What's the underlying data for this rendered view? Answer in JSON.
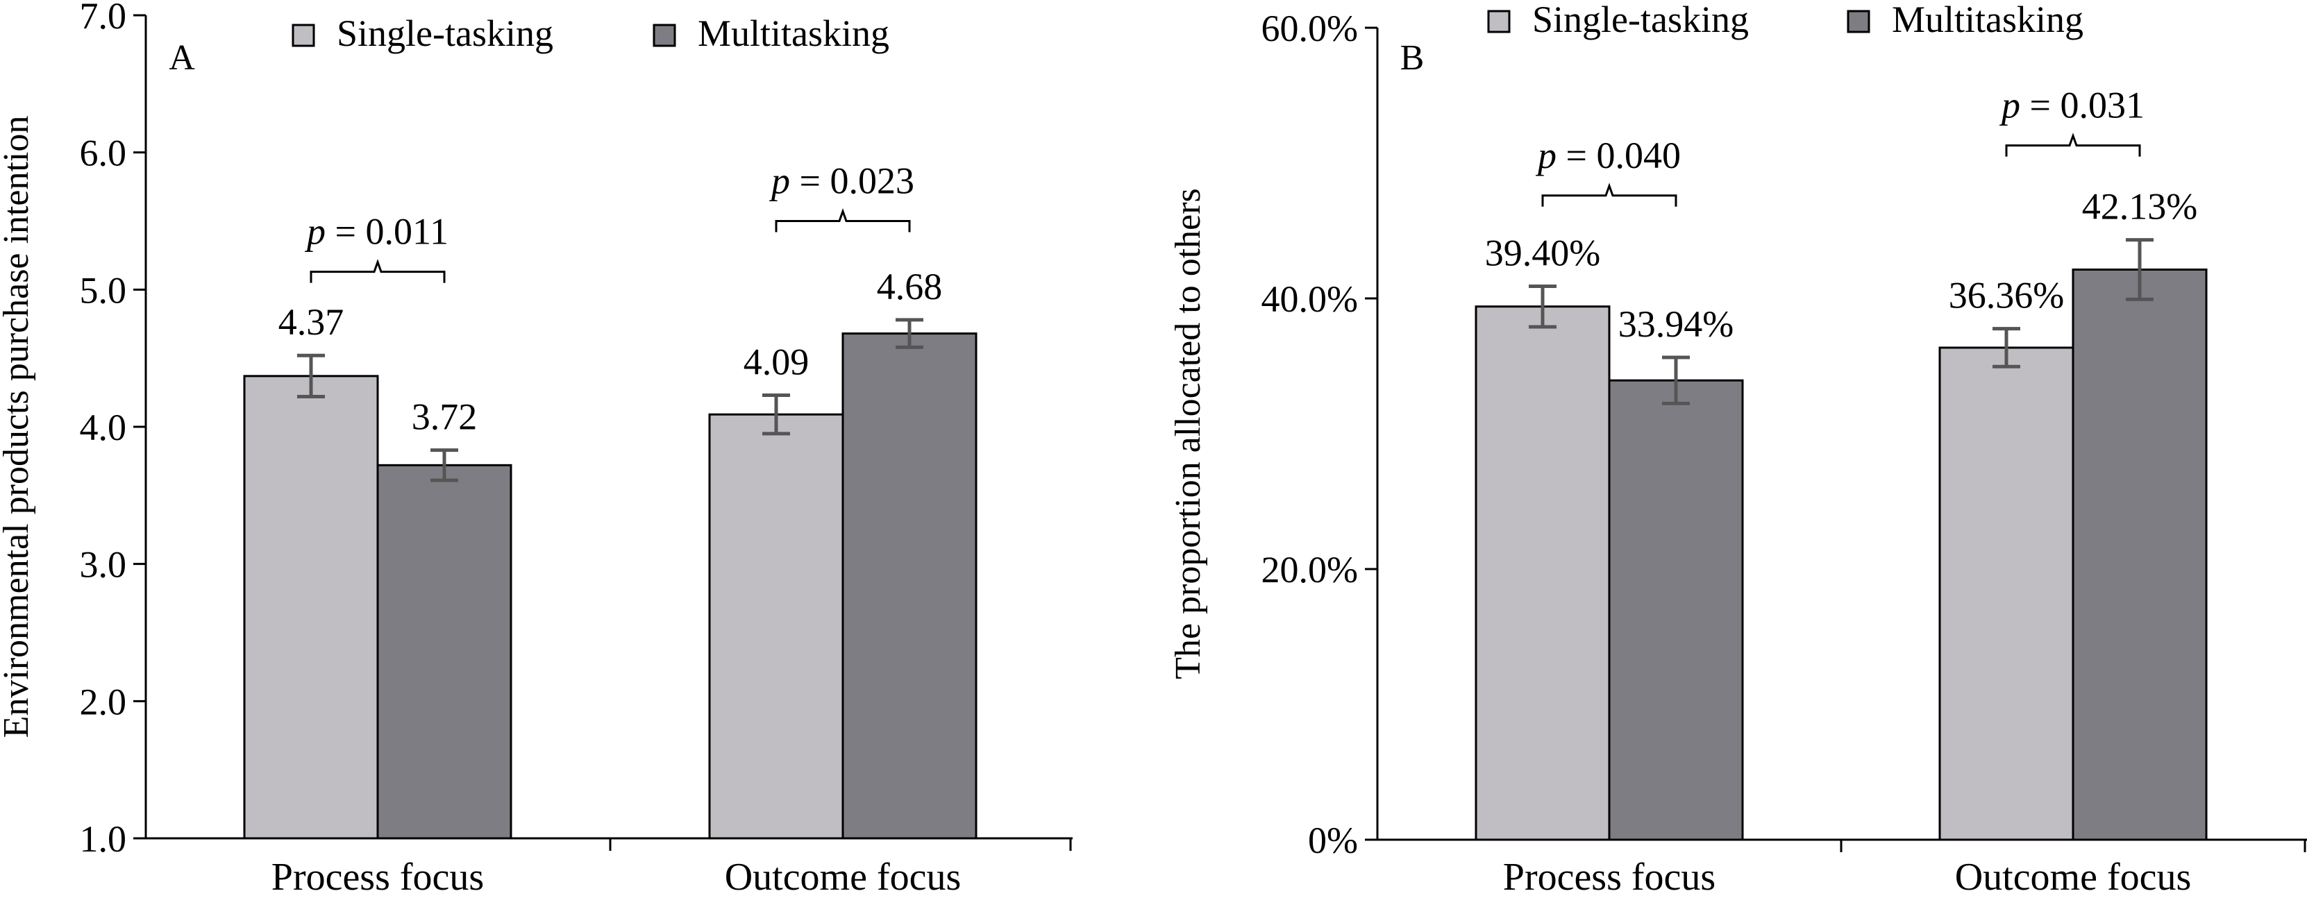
{
  "colors": {
    "single_tasking": "#c0bec3",
    "multitasking": "#7f7d84",
    "bar_outline": "#000000",
    "error_bar": "#555555",
    "axis": "#000000"
  },
  "chart_data": [
    {
      "type": "bar",
      "panel_label": "A",
      "title": "",
      "xlabel": "",
      "ylabel": "Environmental products purchase intention",
      "ylim": [
        1.0,
        7.0
      ],
      "yticks": [
        1.0,
        2.0,
        3.0,
        4.0,
        5.0,
        6.0,
        7.0
      ],
      "ytick_labels": [
        "1.0",
        "2.0",
        "3.0",
        "4.0",
        "5.0",
        "6.0",
        "7.0"
      ],
      "grid": false,
      "legend_position": "top",
      "categories": [
        "Process focus",
        "Outcome focus"
      ],
      "series": [
        {
          "name": "Single-tasking",
          "values": [
            4.37,
            4.09
          ],
          "errors": [
            0.15,
            0.14
          ],
          "labels": [
            "4.37",
            "4.09"
          ]
        },
        {
          "name": "Multitasking",
          "values": [
            3.72,
            4.68
          ],
          "errors": [
            0.11,
            0.1
          ],
          "labels": [
            "3.72",
            "4.68"
          ]
        }
      ],
      "annotations": [
        {
          "category_index": 0,
          "p_symbol": "p",
          "p_text": " = 0.011",
          "bracket_y": 5.13
        },
        {
          "category_index": 1,
          "p_symbol": "p",
          "p_text": " = 0.023",
          "bracket_y": 5.5
        }
      ]
    },
    {
      "type": "bar",
      "panel_label": "B",
      "title": "",
      "xlabel": "",
      "ylabel": "The proportion allocated to others",
      "ylim": [
        0,
        60
      ],
      "yticks": [
        0,
        20,
        40,
        60
      ],
      "ytick_labels": [
        "0%",
        "20.0%",
        "40.0%",
        "60.0%"
      ],
      "grid": false,
      "legend_position": "top",
      "categories": [
        "Process focus",
        "Outcome focus"
      ],
      "series": [
        {
          "name": "Single-tasking",
          "values": [
            39.4,
            36.36
          ],
          "errors": [
            1.5,
            1.4
          ],
          "labels": [
            "39.40%",
            "36.36%"
          ]
        },
        {
          "name": "Multitasking",
          "values": [
            33.94,
            42.13
          ],
          "errors": [
            1.7,
            2.2
          ],
          "labels": [
            "33.94%",
            "42.13%"
          ]
        }
      ],
      "annotations": [
        {
          "category_index": 0,
          "p_symbol": "p",
          "p_text": " = 0.040",
          "bracket_y": 47.6
        },
        {
          "category_index": 1,
          "p_symbol": "p",
          "p_text": " = 0.031",
          "bracket_y": 51.3
        }
      ]
    }
  ]
}
